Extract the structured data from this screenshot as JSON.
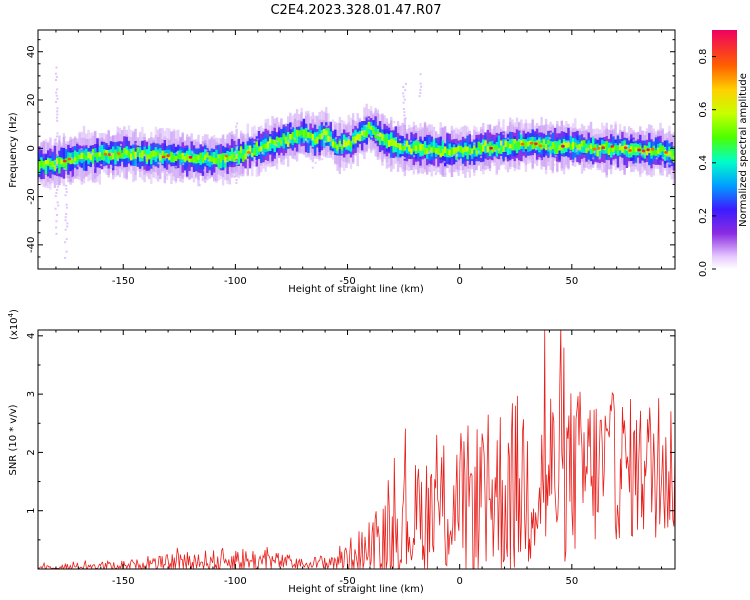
{
  "title": "C2E4.2023.328.01.47.R07",
  "chart_data": [
    {
      "type": "heatmap",
      "xlabel": "Height of straight line (km)",
      "ylabel": "Frequency (Hz)",
      "xlim": [
        -188,
        96
      ],
      "ylim": [
        -50,
        49
      ],
      "x_ticks": [
        -150,
        -100,
        -50,
        0,
        50
      ],
      "y_ticks": [
        -40,
        -20,
        0,
        20,
        40
      ],
      "ridge": {
        "x": [
          -188,
          -180,
          -170,
          -160,
          -150,
          -140,
          -130,
          -120,
          -110,
          -100,
          -90,
          -80,
          -70,
          -65,
          -60,
          -55,
          -50,
          -45,
          -40,
          -35,
          -30,
          -25,
          -20,
          -10,
          0,
          10,
          20,
          30,
          40,
          50,
          60,
          70,
          80,
          90,
          96
        ],
        "frequency": [
          -7,
          -6,
          -4,
          -3,
          -2,
          -3,
          -3,
          -4,
          -5,
          -3,
          0,
          3,
          6,
          4,
          6,
          1,
          2,
          5,
          8,
          4,
          2,
          0,
          0,
          -1,
          -1,
          0,
          1,
          2,
          1,
          1,
          0,
          0,
          -1,
          -1,
          -3
        ]
      },
      "colorbar": {
        "label": "Normalized spectral amplitude",
        "range": [
          0.0,
          0.9
        ],
        "ticks": [
          0.0,
          0.2,
          0.4,
          0.6,
          0.8
        ]
      }
    },
    {
      "type": "line",
      "xlabel": "Height of straight line (km)",
      "ylabel": "SNR (10 * v/v)",
      "multiplier": "(x10",
      "multiplier_exp": "4",
      "xlim": [
        -188,
        96
      ],
      "ylim": [
        0,
        4.1
      ],
      "x_ticks": [
        -150,
        -100,
        -50,
        0,
        50
      ],
      "y_ticks": [
        1,
        2,
        3,
        4
      ],
      "color": "#e8201c",
      "envelope": {
        "x": [
          -188,
          -160,
          -140,
          -130,
          -120,
          -110,
          -100,
          -90,
          -80,
          -70,
          -60,
          -50,
          -40,
          -35,
          -30,
          -25,
          -20,
          -15,
          -10,
          0,
          10,
          20,
          30,
          40,
          50,
          60,
          70,
          80,
          90,
          96
        ],
        "base": [
          0.02,
          0.05,
          0.08,
          0.1,
          0.13,
          0.13,
          0.15,
          0.14,
          0.13,
          0.08,
          0.1,
          0.2,
          0.35,
          0.45,
          0.6,
          0.75,
          0.85,
          0.95,
          1.0,
          1.1,
          1.2,
          1.35,
          1.5,
          1.6,
          1.65,
          1.7,
          1.75,
          1.7,
          1.75,
          1.7
        ],
        "amplitude": [
          0.05,
          0.08,
          0.1,
          0.15,
          0.2,
          0.2,
          0.25,
          0.2,
          0.15,
          0.1,
          0.15,
          0.3,
          0.5,
          0.6,
          0.8,
          0.95,
          1.0,
          1.1,
          1.2,
          1.3,
          1.4,
          1.6,
          1.6,
          1.7,
          1.5,
          1.4,
          1.3,
          1.2,
          1.3,
          1.2
        ]
      },
      "peak": {
        "x": 38,
        "y": 4.1
      }
    }
  ]
}
